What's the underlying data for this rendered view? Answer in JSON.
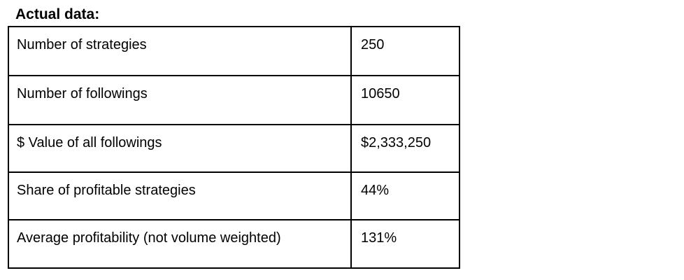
{
  "heading": "Actual data:",
  "rows": [
    {
      "label": "Number of strategies",
      "value": "250"
    },
    {
      "label": "Number of followings",
      "value": "10650"
    },
    {
      "label": "$ Value of all followings",
      "value": "$2,333,250"
    },
    {
      "label": "Share of profitable strategies",
      "value": "44%"
    },
    {
      "label": "Average profitability (not volume weighted)",
      "value": "131%"
    }
  ]
}
